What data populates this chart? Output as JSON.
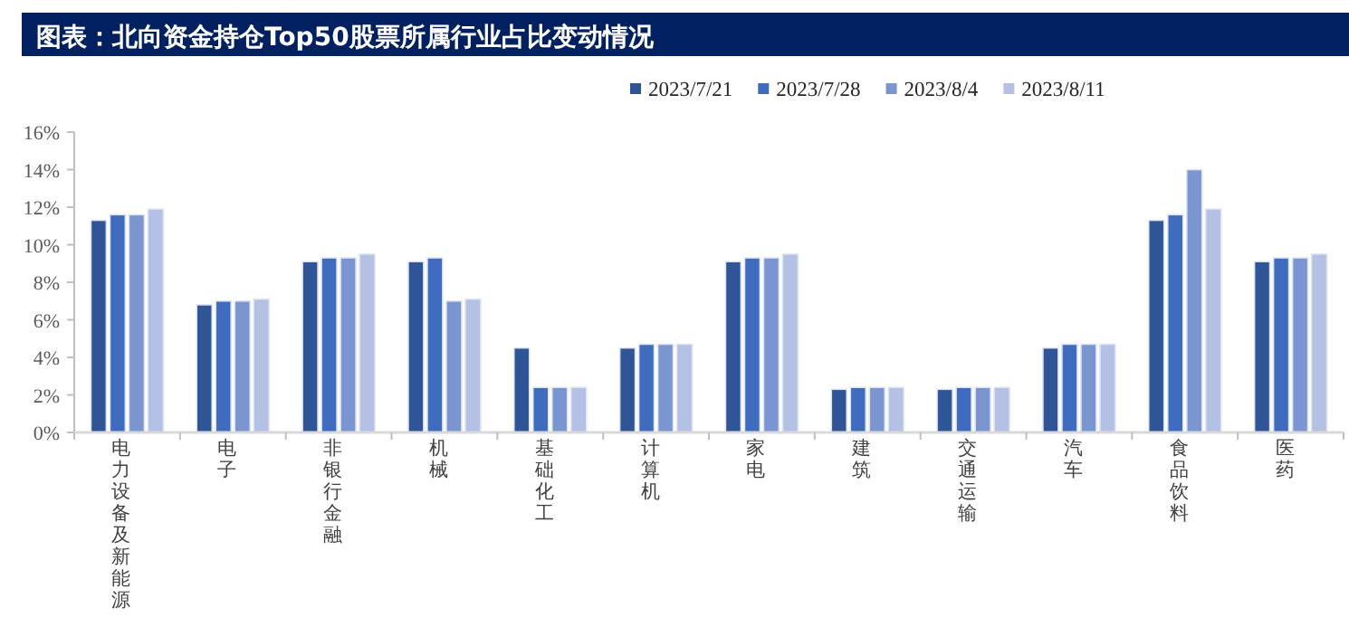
{
  "chart_data": {
    "type": "bar",
    "title": "图表：北向资金持仓Top50股票所属行业占比变动情况",
    "categories": [
      "电力设备及新能源",
      "电子",
      "非银行金融",
      "机械",
      "基础化工",
      "计算机",
      "家电",
      "建筑",
      "交通运输",
      "汽车",
      "食品饮料",
      "医药"
    ],
    "series": [
      {
        "name": "2023/7/21",
        "color": "#2f5597",
        "values": [
          11.3,
          6.8,
          9.1,
          9.1,
          4.5,
          4.5,
          9.1,
          2.3,
          2.3,
          4.5,
          11.3,
          9.1
        ]
      },
      {
        "name": "2023/7/28",
        "color": "#3f6cbf",
        "values": [
          11.6,
          7.0,
          9.3,
          9.3,
          2.4,
          4.7,
          9.3,
          2.4,
          2.4,
          4.7,
          11.6,
          9.3
        ]
      },
      {
        "name": "2023/8/4",
        "color": "#7b95d0",
        "values": [
          11.6,
          7.0,
          9.3,
          7.0,
          2.4,
          4.7,
          9.3,
          2.4,
          2.4,
          4.7,
          14.0,
          9.3
        ]
      },
      {
        "name": "2023/8/11",
        "color": "#b4c0e4",
        "values": [
          11.9,
          7.1,
          9.5,
          7.1,
          2.4,
          4.7,
          9.5,
          2.4,
          2.4,
          4.7,
          11.9,
          9.5
        ]
      }
    ],
    "ylim": [
      0,
      16
    ],
    "yticks": [
      {
        "value": 0,
        "label": "0%"
      },
      {
        "value": 2,
        "label": "2%"
      },
      {
        "value": 4,
        "label": "4%"
      },
      {
        "value": 6,
        "label": "6%"
      },
      {
        "value": 8,
        "label": "8%"
      },
      {
        "value": 10,
        "label": "10%"
      },
      {
        "value": 12,
        "label": "12%"
      },
      {
        "value": 14,
        "label": "14%"
      },
      {
        "value": 16,
        "label": "16%"
      }
    ],
    "legend": "top right",
    "grid": false
  }
}
